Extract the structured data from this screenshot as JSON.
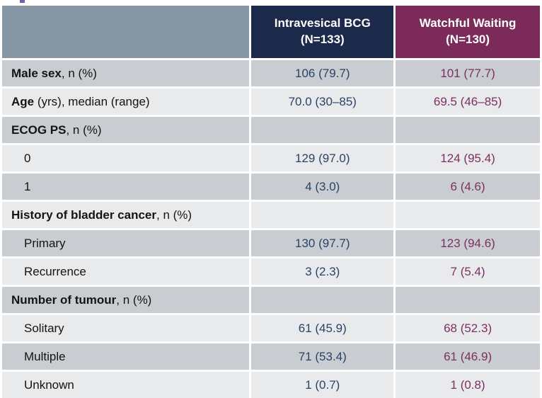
{
  "colors": {
    "title_mark": "#6C63A8",
    "header_blank_bg": "#8796A4",
    "bcg_header_bg": "#1B2A4B",
    "ww_header_bg": "#7B2A5A",
    "row_dark_bg": "#C9CCD1",
    "row_light_bg": "#E9EAEC",
    "bcg_text": "#2A4368",
    "ww_text": "#7C3060",
    "label_text": "#141414"
  },
  "table": {
    "columns": {
      "blank": "",
      "bcg": {
        "line1": "Intravesical BCG",
        "line2": "(N=133)"
      },
      "ww": {
        "line1": "Watchful Waiting",
        "line2": "(N=130)"
      }
    },
    "rows": [
      {
        "label_bold": "Male sex",
        "label_rest": ", n (%)",
        "bcg": "106 (79.7)",
        "ww": "101 (77.7)"
      },
      {
        "label_bold": "Age",
        "label_rest": " (yrs), median (range)",
        "bcg": "70.0 (30–85)",
        "ww": "69.5 (46–85)"
      },
      {
        "label_bold": "ECOG PS",
        "label_rest": ", n (%)",
        "bcg": "",
        "ww": ""
      },
      {
        "label_bold": "",
        "label_rest": "0",
        "bcg": "129 (97.0)",
        "ww": "124 (95.4)"
      },
      {
        "label_bold": "",
        "label_rest": "1",
        "bcg": "4 (3.0)",
        "ww": "6 (4.6)"
      },
      {
        "label_bold": "History of bladder cancer",
        "label_rest": ", n (%)",
        "bcg": "",
        "ww": ""
      },
      {
        "label_bold": "",
        "label_rest": "Primary",
        "bcg": "130 (97.7)",
        "ww": "123 (94.6)"
      },
      {
        "label_bold": "",
        "label_rest": "Recurrence",
        "bcg": "3 (2.3)",
        "ww": "7 (5.4)"
      },
      {
        "label_bold": "Number of tumour",
        "label_rest": ", n (%)",
        "bcg": "",
        "ww": ""
      },
      {
        "label_bold": "",
        "label_rest": "Solitary",
        "bcg": "61 (45.9)",
        "ww": "68 (52.3)"
      },
      {
        "label_bold": "",
        "label_rest": "Multiple",
        "bcg": "71 (53.4)",
        "ww": "61 (46.9)"
      },
      {
        "label_bold": "",
        "label_rest": "Unknown",
        "bcg": "1 (0.7)",
        "ww": "1 (0.8)"
      }
    ]
  }
}
